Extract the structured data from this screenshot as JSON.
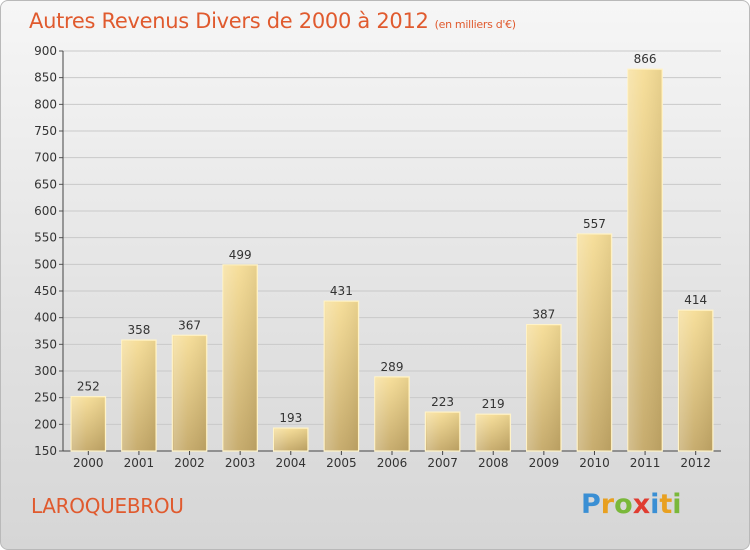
{
  "title": "Autres Revenus Divers de 2000 à 2012",
  "subtitle": "(en milliers d'€)",
  "location": "LAROQUEBROU",
  "brand": {
    "letters": [
      "P",
      "r",
      "o",
      "x",
      "i",
      "t",
      "i"
    ],
    "colors": [
      "#3a8fd4",
      "#e8a020",
      "#7ab83a",
      "#e03c31",
      "#3a8fd4",
      "#e8a020",
      "#7ab83a"
    ]
  },
  "colors": {
    "bar_light": "#f6dd96",
    "bar_dark": "#c4a867",
    "accent": "#e05a2e"
  },
  "chart_data": {
    "type": "bar",
    "categories": [
      "2000",
      "2001",
      "2002",
      "2003",
      "2004",
      "2005",
      "2006",
      "2007",
      "2008",
      "2009",
      "2010",
      "2011",
      "2012"
    ],
    "values": [
      252,
      358,
      367,
      499,
      193,
      431,
      289,
      223,
      219,
      387,
      557,
      866,
      414
    ],
    "data_labels": [
      "252",
      "358",
      "367",
      "499",
      "193",
      "431",
      "289",
      "223",
      "219",
      "387",
      "557",
      "866",
      "414"
    ],
    "ylim": [
      150,
      900
    ],
    "yticks": [
      150,
      200,
      250,
      300,
      350,
      400,
      450,
      500,
      550,
      600,
      650,
      700,
      750,
      800,
      850,
      900
    ],
    "ytick_labels": [
      "150",
      "200",
      "250",
      "300",
      "350",
      "400",
      "450",
      "500",
      "550",
      "600",
      "650",
      "700",
      "750",
      "800",
      "850",
      "900"
    ],
    "grid": "horizontal"
  }
}
